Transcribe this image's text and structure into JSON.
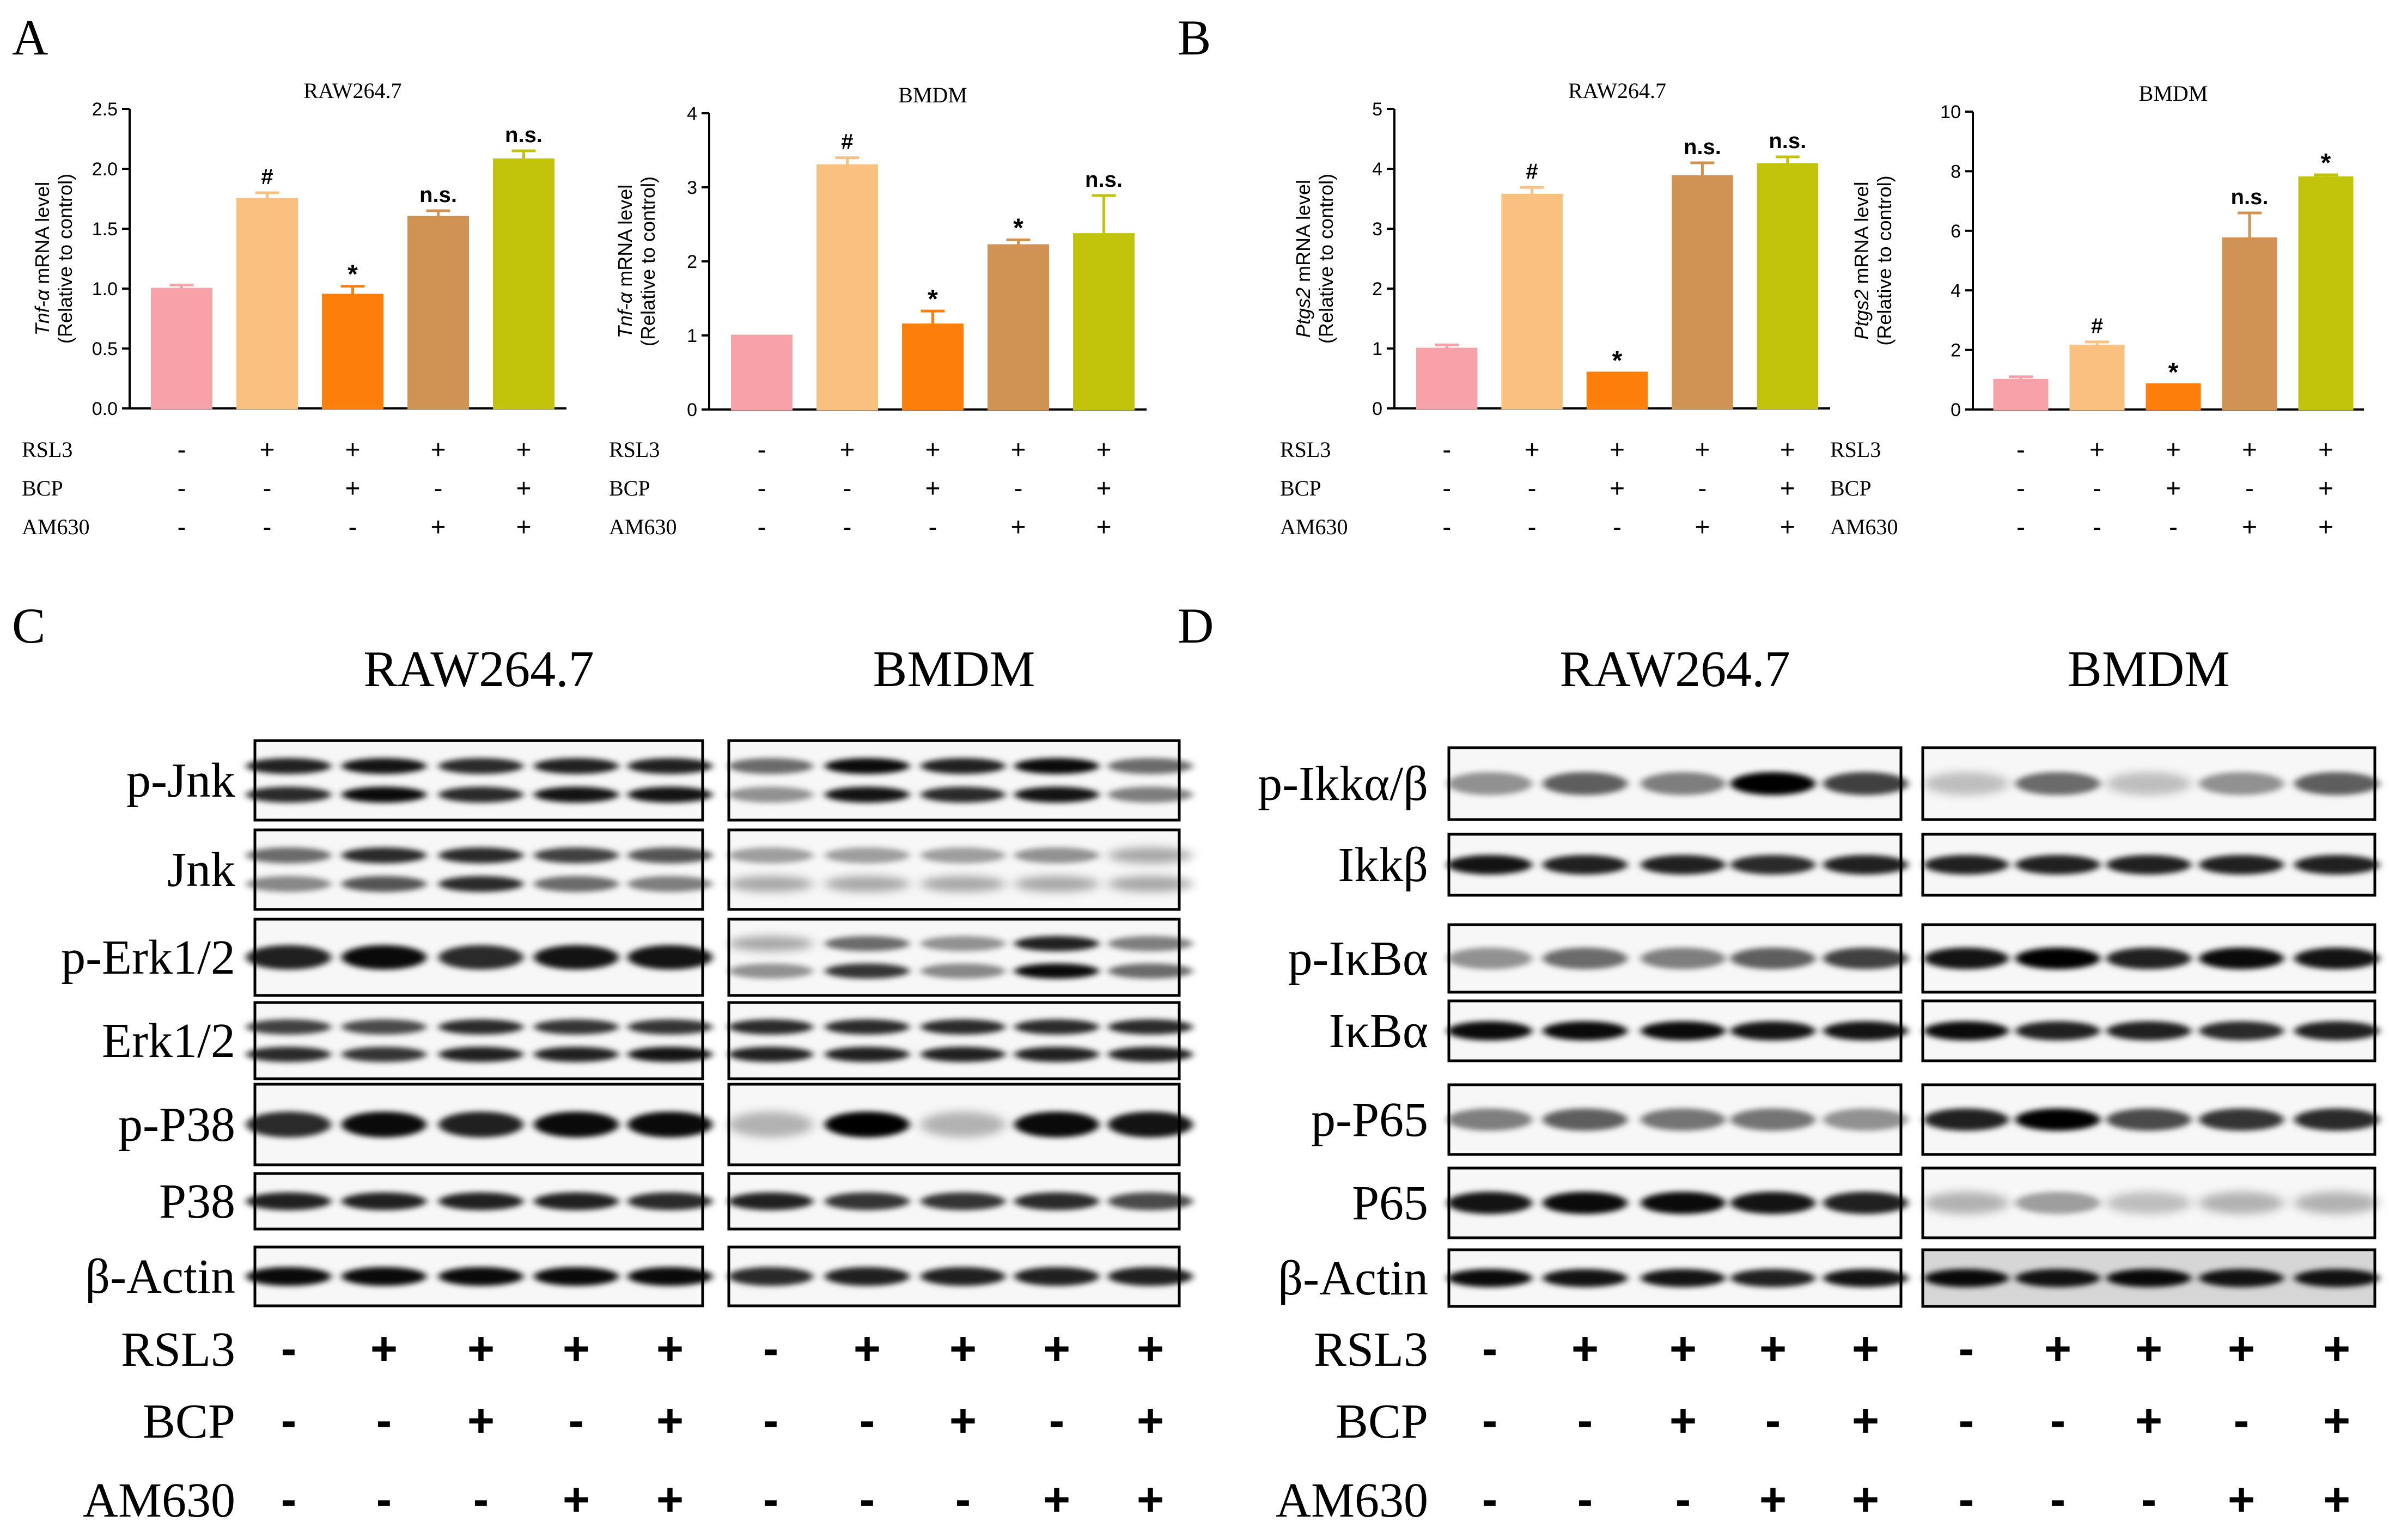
{
  "panels": {
    "A": "A",
    "B": "B",
    "C": "C",
    "D": "D"
  },
  "conditions": [
    "RSL3",
    "BCP",
    "AM630"
  ],
  "sign_matrix": [
    [
      "-",
      "+",
      "+",
      "+",
      "+"
    ],
    [
      "-",
      "-",
      "+",
      "-",
      "+"
    ],
    [
      "-",
      "-",
      "-",
      "+",
      "+"
    ]
  ],
  "bar_colors": [
    "#F7A1A9",
    "#FAC07F",
    "#FD7F0B",
    "#D09353",
    "#C2C40B"
  ],
  "chart_data": [
    {
      "type": "bar",
      "title": "RAW264.7",
      "ylabel_gene": "Tnf-α",
      "ylabel_rest": " mRNA level",
      "ylabel2": "(Relative to control)",
      "ylim": [
        0,
        2.5
      ],
      "yticks": [
        "0.0",
        "0.5",
        "1.0",
        "1.5",
        "2.0",
        "2.5"
      ],
      "values": [
        1.0,
        1.75,
        0.95,
        1.6,
        2.08
      ],
      "errors": [
        0.03,
        0.05,
        0.07,
        0.05,
        0.07
      ],
      "significance": [
        "",
        "#",
        "*",
        "n.s.",
        "n.s."
      ]
    },
    {
      "type": "bar",
      "title": "BMDM",
      "ylabel_gene": "Tnf-α",
      "ylabel_rest": " mRNA level",
      "ylabel2": "(Relative to control)",
      "ylim": [
        0,
        4
      ],
      "yticks": [
        "0",
        "1",
        "2",
        "3",
        "4"
      ],
      "values": [
        1.0,
        3.3,
        1.15,
        2.22,
        2.37
      ],
      "errors": [
        0.0,
        0.1,
        0.18,
        0.07,
        0.52
      ],
      "significance": [
        "",
        "#",
        "*",
        "*",
        "n.s."
      ]
    },
    {
      "type": "bar",
      "title": "RAW264.7",
      "ylabel_gene": "Ptgs2",
      "ylabel_rest": " mRNA level",
      "ylabel2": "(Relative to control)",
      "ylim": [
        0,
        5
      ],
      "yticks": [
        "0",
        "1",
        "2",
        "3",
        "4",
        "5"
      ],
      "values": [
        1.0,
        3.57,
        0.6,
        3.88,
        4.08
      ],
      "errors": [
        0.06,
        0.12,
        0.0,
        0.22,
        0.12
      ],
      "significance": [
        "",
        "#",
        "*",
        "n.s.",
        "n.s."
      ]
    },
    {
      "type": "bar",
      "title": "BMDM",
      "ylabel_gene": "Ptgs2",
      "ylabel_rest": " mRNA level",
      "ylabel2": "(Relative to control)",
      "ylim": [
        0,
        10
      ],
      "yticks": [
        "0",
        "2",
        "4",
        "6",
        "8",
        "10"
      ],
      "values": [
        1.0,
        2.15,
        0.85,
        5.75,
        7.8
      ],
      "errors": [
        0.1,
        0.12,
        0.0,
        0.85,
        0.08
      ],
      "significance": [
        "",
        "#",
        "*",
        "n.s.",
        "*"
      ]
    }
  ],
  "blots": {
    "C": {
      "cells": [
        "RAW264.7",
        "BMDM"
      ],
      "labels": [
        "p-Jnk",
        "Jnk",
        "p-Erk1/2",
        "Erk1/2",
        "p-P38",
        "P38",
        "β-Actin"
      ]
    },
    "D": {
      "cells": [
        "RAW264.7",
        "BMDM"
      ],
      "labels": [
        "p-Ikkα/β",
        "Ikkβ",
        "p-IκBα",
        "IκBα",
        "p-P65",
        "P65",
        "β-Actin"
      ]
    }
  }
}
